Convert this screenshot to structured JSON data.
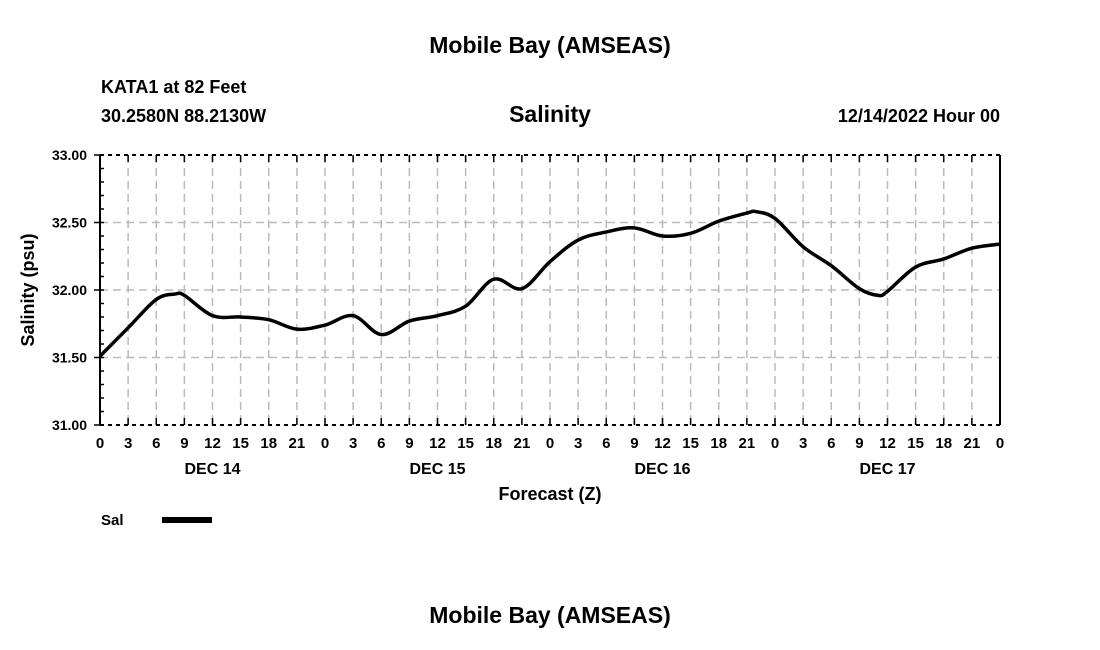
{
  "header": {
    "title": "Mobile Bay (AMSEAS)",
    "station": "KATA1 at 82 Feet",
    "coords": "30.2580N  88.2130W",
    "variable": "Salinity",
    "datetime": "12/14/2022 Hour 00"
  },
  "footer": {
    "title": "Mobile Bay (AMSEAS)"
  },
  "chart_data": {
    "type": "line",
    "title": "Salinity",
    "xlabel": "Forecast (Z)",
    "ylabel": "Salinity (psu)",
    "ylim": [
      31.0,
      33.0
    ],
    "xlim": [
      0,
      96
    ],
    "grid": true,
    "yticks": [
      "31.00",
      "31.50",
      "32.00",
      "32.50",
      "33.00"
    ],
    "ytick_values": [
      31.0,
      31.5,
      32.0,
      32.5,
      33.0
    ],
    "xtick_labels": [
      "0",
      "3",
      "6",
      "9",
      "12",
      "15",
      "18",
      "21",
      "0",
      "3",
      "6",
      "9",
      "12",
      "15",
      "18",
      "21",
      "0",
      "3",
      "6",
      "9",
      "12",
      "15",
      "18",
      "21",
      "0",
      "3",
      "6",
      "9",
      "12",
      "15",
      "18",
      "21",
      "0"
    ],
    "day_labels": [
      {
        "label": "DEC 14",
        "hour": 12
      },
      {
        "label": "DEC 15",
        "hour": 36
      },
      {
        "label": "DEC 16",
        "hour": 60
      },
      {
        "label": "DEC 17",
        "hour": 84
      }
    ],
    "legend": {
      "placement": "bottom-left",
      "entries": [
        "Sal"
      ]
    },
    "series": [
      {
        "name": "Sal",
        "color": "#000000",
        "x": [
          0,
          3,
          6,
          8,
          9,
          12,
          15,
          18,
          21,
          24,
          27,
          30,
          33,
          36,
          39,
          42,
          45,
          48,
          51,
          54,
          57,
          60,
          63,
          66,
          69,
          70,
          72,
          75,
          78,
          81,
          83,
          84,
          87,
          90,
          93,
          96
        ],
        "values": [
          31.51,
          31.72,
          31.93,
          31.97,
          31.96,
          31.81,
          31.8,
          31.78,
          31.71,
          31.74,
          31.81,
          31.67,
          31.77,
          31.81,
          31.88,
          32.08,
          32.01,
          32.21,
          32.37,
          32.43,
          32.46,
          32.4,
          32.42,
          32.51,
          32.57,
          32.58,
          32.53,
          32.32,
          32.18,
          32.01,
          31.96,
          31.99,
          32.17,
          32.23,
          32.31,
          32.34
        ]
      }
    ]
  }
}
